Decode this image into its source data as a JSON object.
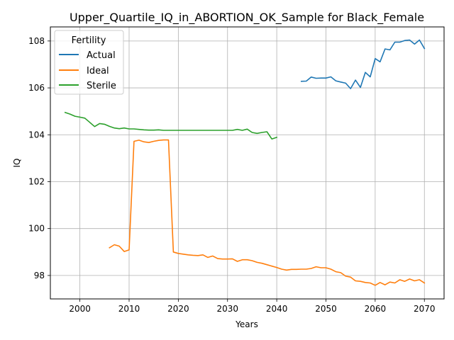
{
  "chart_data": {
    "type": "line",
    "title": "Upper_Quartile_IQ_in_ABORTION_OK_Sample for Black_Female",
    "xlabel": "Years",
    "ylabel": "IQ",
    "xlim": [
      1994,
      2074
    ],
    "ylim": [
      97.0,
      108.6
    ],
    "xticks": [
      2000,
      2010,
      2020,
      2030,
      2040,
      2050,
      2060,
      2070
    ],
    "yticks": [
      98,
      100,
      102,
      104,
      106,
      108
    ],
    "xtick_labels": [
      "2000",
      "2010",
      "2020",
      "2030",
      "2040",
      "2050",
      "2060",
      "2070"
    ],
    "ytick_labels": [
      "98",
      "100",
      "102",
      "104",
      "106",
      "108"
    ],
    "grid": true,
    "legend": {
      "title": "Fertility",
      "placement": "upper left"
    },
    "series": [
      {
        "name": "Actual",
        "color": "#1f77b4",
        "x": [
          2045,
          2046,
          2047,
          2048,
          2049,
          2050,
          2051,
          2052,
          2053,
          2054,
          2055,
          2056,
          2057,
          2058,
          2059,
          2060,
          2061,
          2062,
          2063,
          2064,
          2065,
          2066,
          2067,
          2068,
          2069,
          2070
        ],
        "y": [
          106.28,
          106.29,
          106.46,
          106.41,
          106.42,
          106.42,
          106.47,
          106.3,
          106.25,
          106.2,
          105.97,
          106.33,
          106.02,
          106.66,
          106.47,
          107.25,
          107.11,
          107.66,
          107.62,
          107.95,
          107.95,
          108.02,
          108.04,
          107.87,
          108.04,
          107.68
        ]
      },
      {
        "name": "Ideal",
        "color": "#ff7f0e",
        "x": [
          2006,
          2007,
          2008,
          2009,
          2010,
          2011,
          2012,
          2013,
          2014,
          2015,
          2016,
          2017,
          2018,
          2019,
          2020,
          2021,
          2022,
          2023,
          2024,
          2025,
          2026,
          2027,
          2028,
          2029,
          2030,
          2031,
          2032,
          2033,
          2034,
          2035,
          2036,
          2037,
          2038,
          2039,
          2040,
          2041,
          2042,
          2043,
          2044,
          2045,
          2046,
          2047,
          2048,
          2049,
          2050,
          2051,
          2052,
          2053,
          2054,
          2055,
          2056,
          2057,
          2058,
          2059,
          2060,
          2061,
          2062,
          2063,
          2064,
          2065,
          2066,
          2067,
          2068,
          2069,
          2070
        ],
        "y": [
          99.18,
          99.31,
          99.25,
          99.02,
          99.09,
          103.72,
          103.77,
          103.7,
          103.67,
          103.72,
          103.76,
          103.78,
          103.78,
          99.0,
          98.94,
          98.91,
          98.88,
          98.86,
          98.85,
          98.88,
          98.77,
          98.83,
          98.72,
          98.7,
          98.7,
          98.71,
          98.6,
          98.67,
          98.67,
          98.63,
          98.56,
          98.52,
          98.46,
          98.4,
          98.34,
          98.27,
          98.23,
          98.26,
          98.26,
          98.27,
          98.27,
          98.3,
          98.37,
          98.33,
          98.33,
          98.27,
          98.16,
          98.12,
          97.97,
          97.93,
          97.77,
          97.75,
          97.7,
          97.68,
          97.58,
          97.7,
          97.6,
          97.72,
          97.68,
          97.82,
          97.75,
          97.85,
          97.77,
          97.82,
          97.68
        ]
      },
      {
        "name": "Sterile",
        "color": "#2ca02c",
        "x": [
          1997,
          1998,
          1999,
          2000,
          2001,
          2002,
          2003,
          2004,
          2005,
          2006,
          2007,
          2008,
          2009,
          2010,
          2011,
          2012,
          2013,
          2014,
          2015,
          2016,
          2017,
          2018,
          2019,
          2020,
          2021,
          2022,
          2023,
          2024,
          2025,
          2026,
          2027,
          2028,
          2029,
          2030,
          2031,
          2032,
          2033,
          2034,
          2035,
          2036,
          2037,
          2038,
          2039,
          2040
        ],
        "y": [
          104.95,
          104.88,
          104.79,
          104.75,
          104.71,
          104.53,
          104.35,
          104.48,
          104.45,
          104.36,
          104.29,
          104.26,
          104.29,
          104.25,
          104.25,
          104.23,
          104.21,
          104.2,
          104.2,
          104.21,
          104.19,
          104.19,
          104.19,
          104.19,
          104.19,
          104.19,
          104.19,
          104.19,
          104.19,
          104.19,
          104.19,
          104.19,
          104.19,
          104.19,
          104.19,
          104.23,
          104.19,
          104.24,
          104.1,
          104.06,
          104.1,
          104.13,
          103.82,
          103.89
        ]
      }
    ]
  }
}
